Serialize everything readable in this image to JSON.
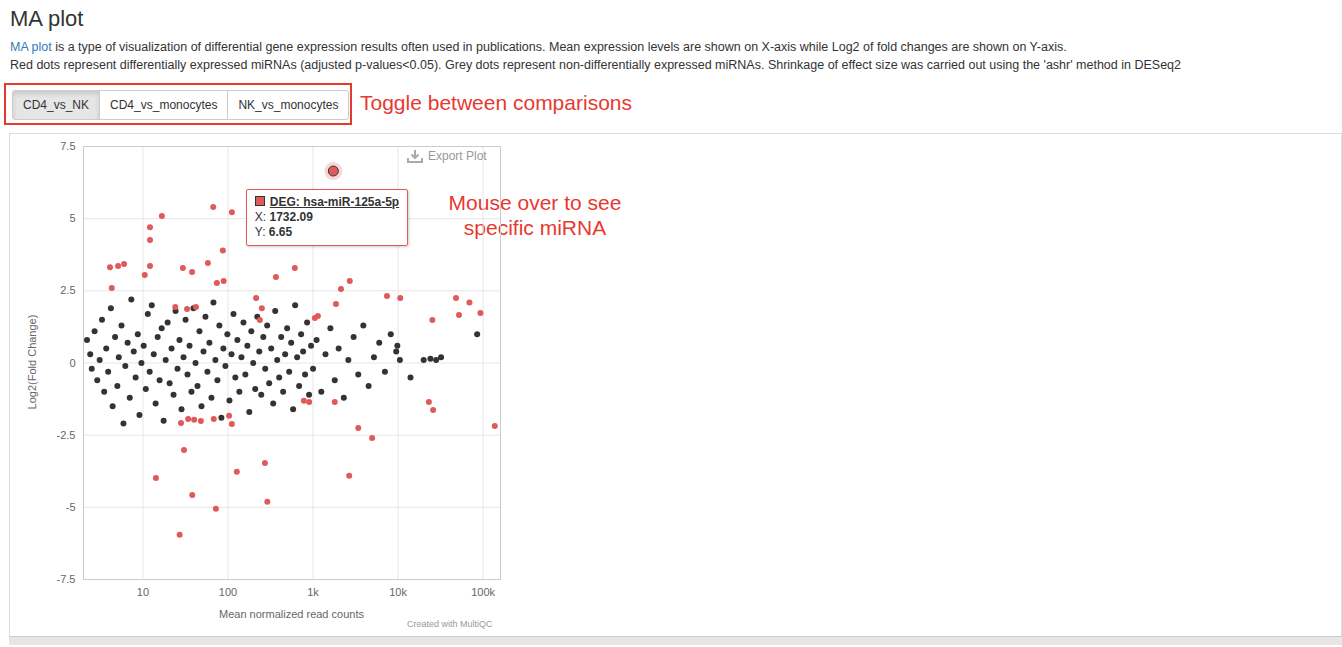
{
  "chart_data": {
    "type": "scatter",
    "title": "MA plot",
    "subtitle_link": "MA plot",
    "subtitle": [
      "MA plot is a type of visualization of differential gene expression results often used in publications. Mean expression levels are shown on X-axis while Log2 of fold changes are shown on Y-axis.",
      "Red dots represent differentially expressed miRNAs (adjusted p-values<0.05). Grey dots represent non-differentially expressed miRNAs. Shrinkage of effect size was carried out using the 'ashr' method in DESeq2"
    ],
    "tabs": [
      "CD4_vs_NK",
      "CD4_vs_monocytes",
      "NK_vs_monocytes"
    ],
    "annotations": [
      {
        "lines": [
          "Toggle between comparisons"
        ]
      },
      {
        "lines": [
          "Mouse over to see",
          "specific miRNA"
        ]
      }
    ],
    "export_label": "Export Plot",
    "credit": "Created with MultiQC",
    "x_label": "Mean normalized read counts",
    "y_label": "Log2(Fold Change)",
    "log": "x",
    "grid": true,
    "xlim": [
      2,
      160000
    ],
    "ylim": [
      -7.5,
      7.5
    ],
    "xticks": [
      10,
      100,
      {
        "value": 1000,
        "label": "1k"
      },
      {
        "value": 10000,
        "label": "10k"
      },
      {
        "value": 100000,
        "label": "100k"
      }
    ],
    "yticks": [
      -7.5,
      -5,
      -2.5,
      0,
      2.5,
      5,
      7.5
    ],
    "tooltip": {
      "name": "DEG: hsa-miR-125a-5p",
      "x": 1732.09,
      "y": 6.65,
      "x_key": "X:",
      "y_key": "Y:"
    },
    "series": [
      {
        "color": "#333333",
        "marker": "circle",
        "x": [
          2.2,
          2.4,
          2.5,
          2.7,
          2.9,
          3.1,
          3.3,
          3.5,
          3.7,
          3.9,
          4.2,
          4.4,
          4.7,
          5.0,
          5.2,
          5.6,
          5.9,
          6.2,
          6.6,
          7.0,
          7.3,
          7.8,
          8.2,
          8.7,
          9.1,
          9.6,
          10.2,
          10.8,
          11.4,
          12.0,
          12.7,
          13.4,
          14.1,
          14.9,
          15.7,
          16.6,
          17.5,
          18.5,
          19.5,
          20.6,
          21.7,
          22.9,
          24.2,
          25.5,
          26.9,
          28.4,
          30.0,
          31.7,
          33.4,
          35.3,
          37.2,
          39.3,
          41.5,
          43.8,
          46.2,
          48.8,
          51.5,
          54.3,
          57.3,
          60.5,
          63.9,
          67.4,
          71.1,
          75.1,
          79.2,
          83.6,
          88.3,
          93.2,
          98.3,
          104,
          110,
          116,
          122,
          129,
          136,
          144,
          152,
          160,
          169,
          178,
          188,
          198,
          209,
          221,
          233,
          246,
          260,
          274,
          289,
          305,
          322,
          340,
          359,
          379,
          400,
          422,
          445,
          470,
          496,
          524,
          553,
          583,
          616,
          650,
          686,
          724,
          764,
          806,
          851,
          898,
          948,
          1000,
          1100,
          1250,
          1400,
          1600,
          1800,
          2000,
          2300,
          2600,
          3000,
          3400,
          3900,
          4500,
          5200,
          6000,
          7000,
          8200,
          9500,
          9800,
          10500,
          14000,
          20000,
          24000,
          28000,
          32000,
          85000
        ],
        "y": [
          0.8,
          0.3,
          -0.2,
          1.1,
          -0.6,
          0.1,
          1.5,
          -1.0,
          0.5,
          -0.3,
          1.9,
          -1.5,
          0.9,
          -0.8,
          0.2,
          1.3,
          -2.1,
          -0.1,
          0.7,
          -1.2,
          2.2,
          0.4,
          -0.5,
          1.0,
          -1.8,
          0.0,
          0.6,
          -0.9,
          1.7,
          -0.3,
          2.0,
          0.3,
          -1.4,
          0.9,
          -0.6,
          1.2,
          -2.0,
          0.1,
          1.4,
          -0.7,
          0.5,
          -1.1,
          1.8,
          -0.2,
          0.8,
          -1.6,
          0.2,
          1.5,
          -0.4,
          0.6,
          -1.0,
          1.9,
          0.0,
          -0.8,
          1.1,
          -1.5,
          0.4,
          1.6,
          -0.3,
          0.7,
          -1.2,
          2.1,
          0.1,
          -0.6,
          1.3,
          -1.9,
          0.5,
          -0.1,
          1.0,
          -1.3,
          0.3,
          1.7,
          -0.5,
          0.8,
          -1.0,
          0.2,
          1.4,
          -0.4,
          0.6,
          -1.7,
          1.1,
          0.0,
          -0.9,
          1.6,
          0.4,
          -1.1,
          0.9,
          -0.2,
          1.3,
          -0.7,
          0.5,
          -1.4,
          1.8,
          0.1,
          -0.5,
          0.9,
          -1.0,
          0.3,
          1.2,
          -0.3,
          0.7,
          -1.6,
          2.0,
          0.2,
          -0.8,
          1.0,
          0.4,
          -0.4,
          1.4,
          -1.1,
          0.6,
          -0.2,
          0.8,
          -1.0,
          0.3,
          1.2,
          -0.6,
          0.5,
          -1.2,
          0.1,
          0.9,
          -0.4,
          1.3,
          -0.8,
          0.2,
          0.7,
          -0.3,
          1.0,
          0.4,
          0.6,
          0.1,
          -0.5,
          0.1,
          0.15,
          0.1,
          0.2,
          1.0
        ]
      },
      {
        "color": "#e05a5a",
        "marker": "circle",
        "x": [
          12.1,
          12.1,
          16.7,
          12.1,
          10.5,
          4.1,
          5.1,
          6.0,
          4.3,
          29.5,
          37.8,
          58,
          67,
          111,
          87,
          74,
          89,
          250,
          214,
          366,
          610,
          1732.09,
          1860,
          2130,
          2700,
          7400,
          10600,
          25300,
          48000,
          52000,
          69000,
          93000,
          1050,
          1140,
          237,
          24,
          33,
          42,
          14.2,
          30.4,
          28,
          34,
          40,
          48,
          68,
          103,
          111,
          38,
          27,
          72,
          127,
          272,
          290,
          780,
          900,
          1800,
          3400,
          4950,
          2660,
          23000,
          25800,
          137000
        ],
        "y": [
          4.7,
          4.26,
          5.09,
          3.36,
          3.05,
          3.32,
          3.36,
          3.43,
          2.6,
          3.29,
          3.15,
          3.46,
          5.4,
          5.22,
          3.9,
          2.77,
          2.84,
          1.9,
          2.25,
          2.98,
          3.29,
          6.65,
          2.04,
          2.56,
          2.84,
          2.32,
          2.25,
          1.49,
          2.25,
          1.66,
          2.1,
          1.73,
          1.56,
          1.63,
          1.49,
          1.94,
          1.87,
          1.94,
          -3.98,
          -3.01,
          -2.08,
          -1.94,
          -1.97,
          -2.01,
          -1.94,
          -1.83,
          -2.11,
          -4.57,
          -5.95,
          -5.05,
          -3.77,
          -3.46,
          -4.81,
          -1.31,
          -1.35,
          -1.35,
          -2.25,
          -2.6,
          -3.91,
          -1.35,
          -1.63,
          -2.18
        ]
      }
    ]
  }
}
